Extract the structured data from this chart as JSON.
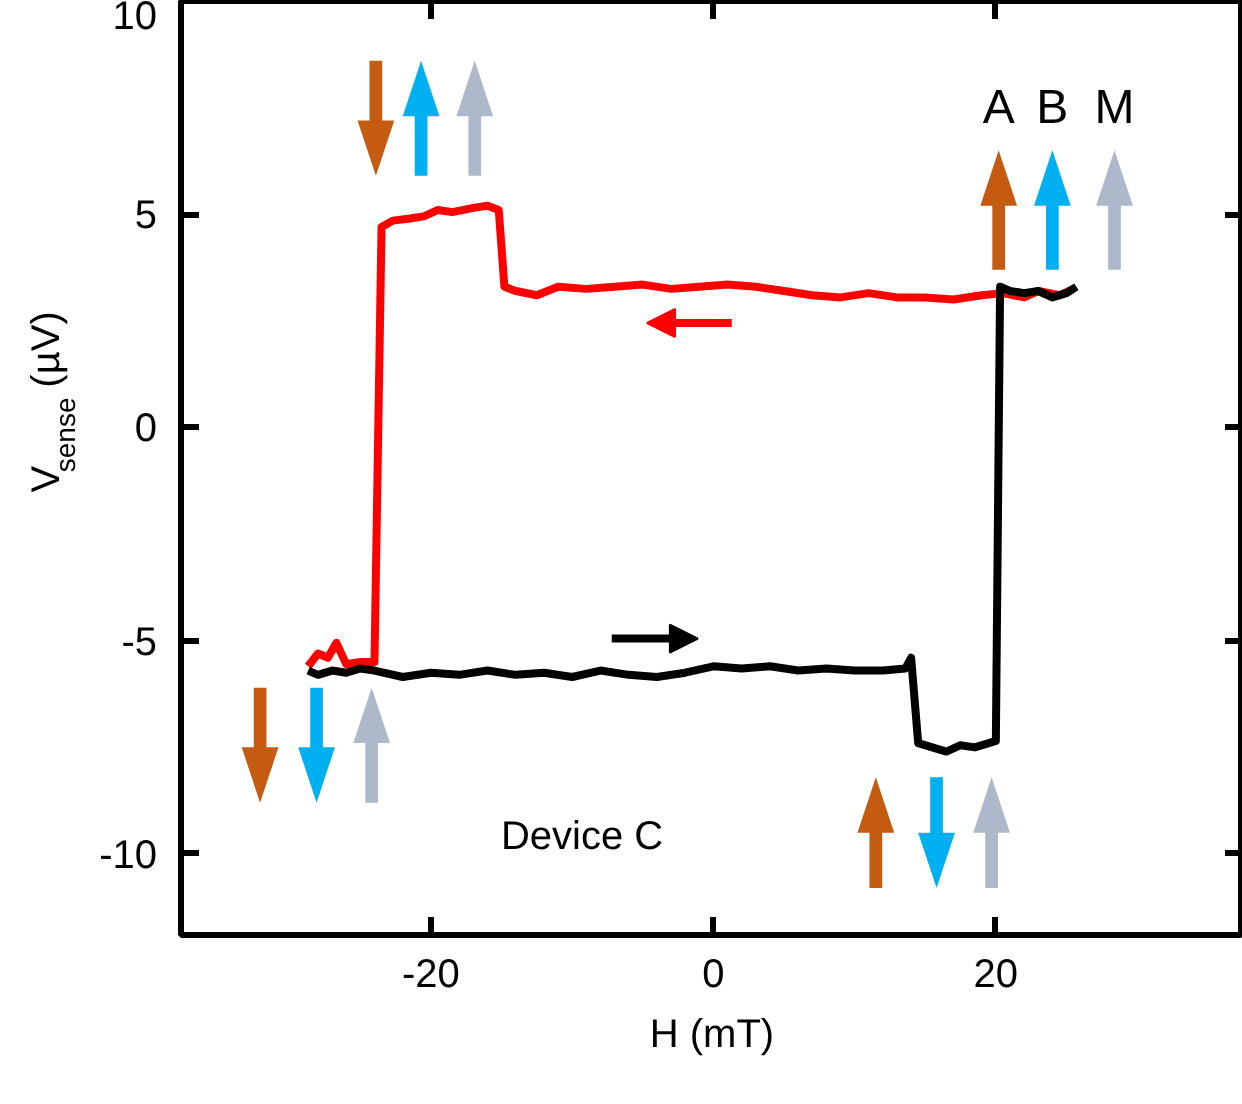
{
  "chart_data": {
    "type": "line",
    "xlabel": "H (mT)",
    "ylabel": "V$_{sense}$ (µV)",
    "xlim": [
      -37.7,
      37.5
    ],
    "ylim": [
      -11.9,
      10
    ],
    "xticks": [
      -20,
      0,
      20
    ],
    "yticks": [
      -10,
      -5,
      0,
      5,
      10
    ],
    "grid": false,
    "line_style": "solid",
    "annotations": [
      "Device C",
      "A",
      "B",
      "M"
    ],
    "series": [
      {
        "color": "#ff0000",
        "x": [
          25.5,
          24.5,
          23,
          22,
          20.5,
          19,
          17,
          15,
          13,
          11,
          9,
          7,
          5,
          3,
          1,
          -1,
          -3,
          -5,
          -7,
          -9,
          -11,
          -12.5,
          -14,
          -14.8,
          -15.2,
          -16,
          -17,
          -18.5,
          -19.5,
          -20.5,
          -21.5,
          -22.7,
          -23.5,
          -24.0,
          -25,
          -26,
          -26.7,
          -27.3,
          -28,
          -28.7
        ],
        "values": [
          3.25,
          3.1,
          3.2,
          3.05,
          3.15,
          3.1,
          3.0,
          3.05,
          3.05,
          3.15,
          3.05,
          3.1,
          3.2,
          3.3,
          3.35,
          3.3,
          3.25,
          3.35,
          3.3,
          3.25,
          3.3,
          3.1,
          3.2,
          3.3,
          5.1,
          5.2,
          5.15,
          5.05,
          5.1,
          4.95,
          4.9,
          4.85,
          4.7,
          -5.5,
          -5.5,
          -5.55,
          -5.05,
          -5.4,
          -5.3,
          -5.6
        ]
      },
      {
        "color": "#000000",
        "x": [
          -28.7,
          -28,
          -27,
          -26,
          -25,
          -24,
          -22,
          -20,
          -18,
          -16,
          -14,
          -12,
          -10,
          -8,
          -6,
          -4,
          -2,
          0,
          2,
          4,
          6,
          8,
          10,
          12,
          13.6,
          14.0,
          14.5,
          15.5,
          16.5,
          17.5,
          18.5,
          19.5,
          20.0,
          20.3,
          21,
          22,
          23,
          24,
          25,
          25.7
        ],
        "values": [
          -5.7,
          -5.8,
          -5.7,
          -5.75,
          -5.65,
          -5.7,
          -5.85,
          -5.75,
          -5.8,
          -5.7,
          -5.8,
          -5.75,
          -5.85,
          -5.7,
          -5.8,
          -5.85,
          -5.75,
          -5.6,
          -5.65,
          -5.6,
          -5.7,
          -5.65,
          -5.7,
          -5.7,
          -5.65,
          -5.4,
          -7.4,
          -7.5,
          -7.6,
          -7.45,
          -7.5,
          -7.4,
          -7.35,
          3.3,
          3.2,
          3.15,
          3.2,
          3.05,
          3.15,
          3.3
        ]
      }
    ]
  }
}
